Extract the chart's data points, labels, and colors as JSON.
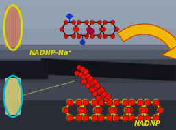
{
  "bg_color": "#5a6070",
  "label_top": "NADNP-Na⁺",
  "label_bottom": "NADNP",
  "arrow_color_fill": "#f0b800",
  "arrow_color_edge": "#cc4400",
  "strip_top_color": "#c8806a",
  "strip_bottom_color": "#d8cc7a",
  "oval_top_color": "#dddd00",
  "oval_bottom_color": "#00bbcc",
  "label_color": "#dddd00",
  "label_bottom_color": "#dddd00",
  "figsize": [
    2.57,
    1.89
  ],
  "dpi": 100,
  "sky_color": "#8899aa",
  "sky_low_color": "#6a7a8a",
  "field_color": "#3a3a40",
  "horizon_color": "#555560",
  "pipe_color": "#111118"
}
